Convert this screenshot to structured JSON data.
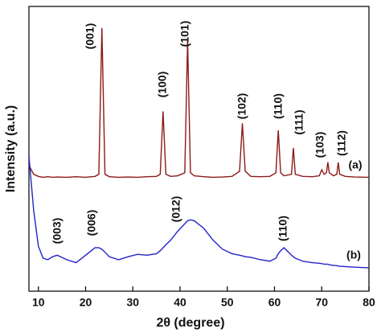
{
  "chart_data": {
    "type": "line",
    "x_label": "2θ (degree)",
    "y_label": "Intensity (a.u.)",
    "x": [
      8,
      9,
      10,
      11,
      12,
      13,
      14,
      16,
      18,
      20,
      22,
      22.8,
      23.45,
      24.1,
      25,
      27,
      29,
      31,
      33,
      35,
      35.8,
      36.4,
      37,
      38,
      39.5,
      41,
      41.6,
      42.2,
      43,
      45,
      47,
      49,
      51,
      52.6,
      53.2,
      53.8,
      55,
      57,
      59,
      60.3,
      60.8,
      61.3,
      62,
      63.6,
      64,
      64.4,
      66,
      68,
      69.5,
      70,
      70.5,
      71,
      71.3,
      71.6,
      72.5,
      73.2,
      73.5,
      73.8,
      75,
      77,
      80
    ],
    "series": [
      {
        "name": "(a)",
        "color": "#8b1a1a",
        "values": [
          47,
          44,
          43.3,
          43,
          43.2,
          43,
          43.1,
          43,
          43.2,
          43,
          43.3,
          44,
          92.8,
          44,
          43.2,
          43,
          43.1,
          43,
          43.2,
          43.3,
          44,
          65,
          44,
          43.3,
          43.5,
          44.5,
          88.8,
          44.5,
          43.5,
          43.2,
          43,
          43.1,
          43.3,
          45,
          61,
          45,
          43.3,
          43.2,
          43.3,
          44.5,
          58.7,
          44.5,
          43.5,
          44,
          52.8,
          44,
          43.3,
          43.2,
          43.5,
          45.5,
          44,
          44.5,
          48,
          44.5,
          43.5,
          44,
          48,
          44,
          43.3,
          43.1,
          43
        ]
      },
      {
        "name": "(b)",
        "color": "#2323c8",
        "values": [
          50,
          32,
          20,
          16,
          15.5,
          16.5,
          17,
          15.5,
          14.5,
          17,
          19.5,
          19.5,
          19,
          18,
          16.5,
          15.5,
          16.5,
          17.3,
          17,
          17.5,
          18.5,
          19.5,
          20.5,
          22,
          25,
          27.5,
          28.5,
          28.8,
          28.5,
          26,
          22,
          19,
          17.5,
          17,
          16.8,
          16.5,
          16.3,
          15.5,
          15,
          16,
          17.5,
          18.5,
          19.5,
          17,
          16.5,
          16,
          15,
          14.5,
          14.3,
          14.2,
          14,
          14,
          14,
          13.8,
          13.6,
          13.5,
          13.4,
          13.3,
          13.2,
          13,
          12.8
        ]
      }
    ],
    "annotations": [
      "(001)",
      "(100)",
      "(101)",
      "(102)",
      "(110)",
      "(111)",
      "(103)",
      "(112)",
      "(003)",
      "(006)",
      "(012)",
      "(110)"
    ],
    "xlim": [
      8,
      80
    ],
    "xticks": [
      10,
      20,
      30,
      40,
      50,
      60,
      70,
      80
    ],
    "ylim": [
      5,
      100
    ]
  }
}
